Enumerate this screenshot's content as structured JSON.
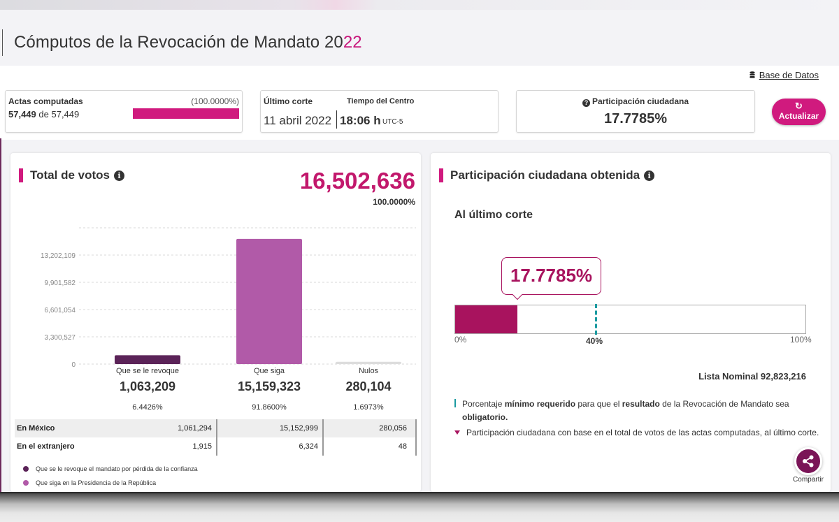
{
  "header": {
    "title_main": "Cómputos de la Revocación de Mandato 20",
    "title_accent": "22"
  },
  "toolbar": {
    "db_link": "Base de Datos",
    "update_button": "Actualizar",
    "update_icon": "refresh-icon"
  },
  "actas": {
    "label": "Actas computadas",
    "percent": "(100.0000%)",
    "count": "57,449",
    "of_word": "de",
    "total": "57,449",
    "progress": 1.0
  },
  "corte": {
    "label": "Último corte",
    "tz_label": "Tiempo del Centro",
    "date": "11 abril 2022",
    "time": "18:06 h",
    "tz": "UTC-5"
  },
  "participacion": {
    "label": "Participación ciudadana",
    "value": "17.7785%"
  },
  "votos": {
    "title": "Total de votos",
    "total": "16,502,636",
    "total_pct": "100.0000%",
    "categories": [
      {
        "label": "Que se le revoque",
        "value": "1,063,209",
        "pct": "6.4426%"
      },
      {
        "label": "Que siga",
        "value": "15,159,323",
        "pct": "91.8600%"
      },
      {
        "label": "Nulos",
        "value": "280,104",
        "pct": "1.6973%"
      }
    ],
    "table": [
      {
        "label": "En México",
        "values": [
          "1,061,294",
          "15,152,999",
          "280,056"
        ]
      },
      {
        "label": "En el extranjero",
        "values": [
          "1,915",
          "6,324",
          "48"
        ]
      }
    ],
    "legend": [
      {
        "label": "Que se le revoque el mandato por pérdida de la confianza",
        "color": "#5b2358"
      },
      {
        "label": "Que siga en la Presidencia de la República",
        "color": "#b15aa8"
      }
    ]
  },
  "chart_data": {
    "type": "bar",
    "categories": [
      "Que se le revoque",
      "Que siga",
      "Nulos"
    ],
    "values": [
      1063209,
      15159323,
      280104
    ],
    "colors": [
      "#5b2358",
      "#b15aa8",
      "#dddddd"
    ],
    "yticks": [
      0,
      3300527,
      6601054,
      9901582,
      13202109
    ],
    "ytick_labels": [
      "0",
      "3,300,527",
      "6,601,054",
      "9,901,582",
      "13,202,109"
    ],
    "ylim": [
      0,
      16502636
    ],
    "grid": true
  },
  "obtenida": {
    "title": "Participación ciudadana obtenida",
    "subtitle": "Al último corte",
    "value": "17.7785%",
    "fill_fraction": 0.177785,
    "threshold_fraction": 0.4,
    "scale_min": "0%",
    "scale_threshold": "40%",
    "scale_max": "100%",
    "lista_nominal": "Lista Nominal 92,823,216",
    "note1_a": "Porcentaje ",
    "note1_b": "mínimo requerido",
    "note1_c": " para que el ",
    "note1_d": "resultado",
    "note1_e": " de la Revocación de Mandato sea ",
    "note1_f": "obligatorio.",
    "note2": "Participación ciudadana con base en el total de votos de las actas computadas, al último corte."
  },
  "share": {
    "label": "Compartir"
  }
}
